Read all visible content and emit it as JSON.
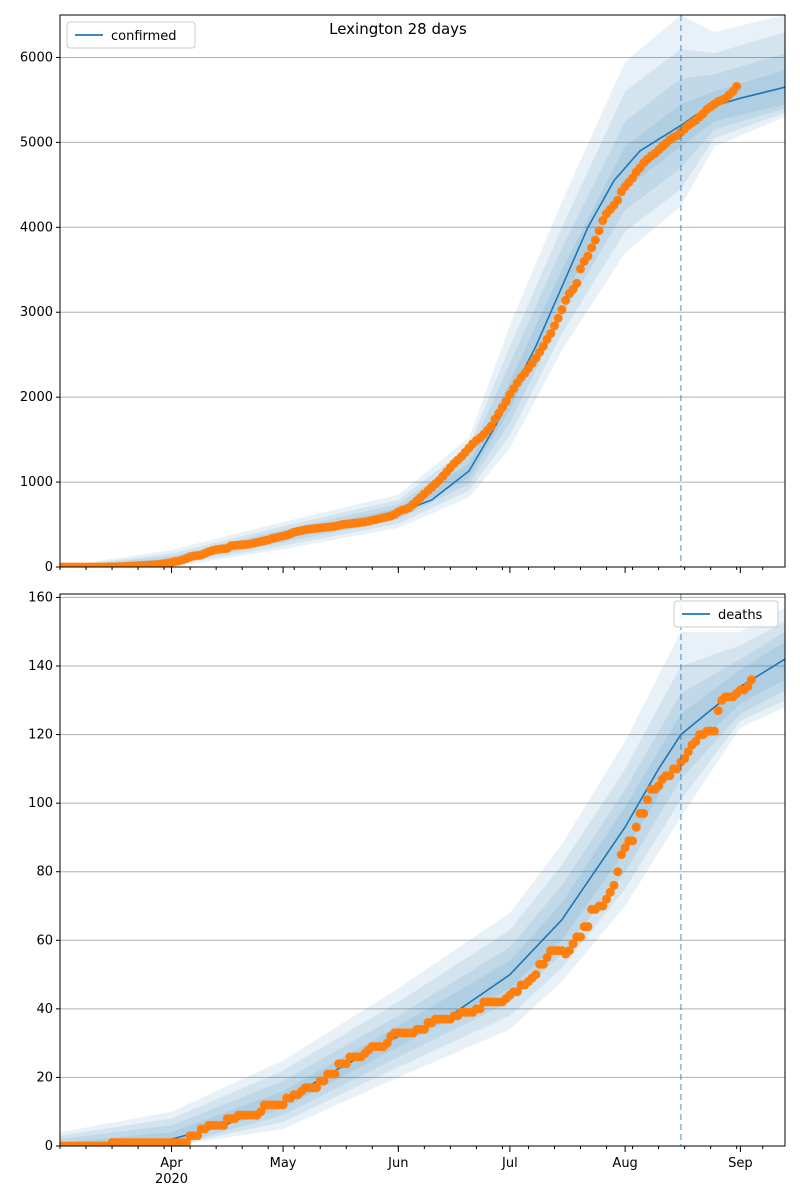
{
  "figure": {
    "title": "Lexington 28 days"
  },
  "colors": {
    "model": "#1f77b4",
    "observed": "#ff7f0e",
    "band": "#1f77b4",
    "grid": "#b0b0b0",
    "vline": "#1f77b4"
  },
  "x_axis": {
    "start": "2020-03-02",
    "end": "2020-09-13",
    "ticks": [
      {
        "date": "2020-04-01",
        "label": "Apr",
        "sublabel": "2020"
      },
      {
        "date": "2020-05-01",
        "label": "May"
      },
      {
        "date": "2020-06-01",
        "label": "Jun"
      },
      {
        "date": "2020-07-01",
        "label": "Jul"
      },
      {
        "date": "2020-08-01",
        "label": "Aug"
      },
      {
        "date": "2020-09-01",
        "label": "Sep"
      }
    ],
    "forecast_start": "2020-08-16"
  },
  "chart_data": [
    {
      "type": "line",
      "legend": "confirmed",
      "legend_position": "upper left",
      "grid": "horizontal",
      "ylim": [
        0,
        6500
      ],
      "yticks": [
        0,
        1000,
        2000,
        3000,
        4000,
        5000,
        6000
      ],
      "model": {
        "name": "confirmed",
        "points": [
          [
            "2020-03-02",
            0
          ],
          [
            "2020-03-15",
            3
          ],
          [
            "2020-03-25",
            25
          ],
          [
            "2020-04-01",
            80
          ],
          [
            "2020-04-10",
            160
          ],
          [
            "2020-04-20",
            250
          ],
          [
            "2020-05-01",
            360
          ],
          [
            "2020-05-10",
            450
          ],
          [
            "2020-05-20",
            530
          ],
          [
            "2020-06-01",
            640
          ],
          [
            "2020-06-10",
            790
          ],
          [
            "2020-06-20",
            1130
          ],
          [
            "2020-06-27",
            1650
          ],
          [
            "2020-07-01",
            2000
          ],
          [
            "2020-07-08",
            2600
          ],
          [
            "2020-07-15",
            3300
          ],
          [
            "2020-07-22",
            4000
          ],
          [
            "2020-07-29",
            4550
          ],
          [
            "2020-08-05",
            4900
          ],
          [
            "2020-08-16",
            5200
          ],
          [
            "2020-08-20",
            5320
          ],
          [
            "2020-08-25",
            5430
          ],
          [
            "2020-09-01",
            5520
          ],
          [
            "2020-09-13",
            5650
          ]
        ]
      },
      "bands": [
        {
          "level": 1,
          "points": [
            [
              "2020-03-02",
              0,
              0
            ],
            [
              "2020-04-01",
              60,
              100
            ],
            [
              "2020-05-01",
              330,
              400
            ],
            [
              "2020-06-01",
              600,
              690
            ],
            [
              "2020-06-20",
              1050,
              1220
            ],
            [
              "2020-07-01",
              1850,
              2180
            ],
            [
              "2020-07-15",
              3150,
              3500
            ],
            [
              "2020-08-01",
              4450,
              4950
            ],
            [
              "2020-08-16",
              4950,
              5450
            ],
            [
              "2020-08-25",
              5250,
              5600
            ],
            [
              "2020-09-13",
              5450,
              5850
            ]
          ]
        },
        {
          "level": 2,
          "points": [
            [
              "2020-03-02",
              0,
              0
            ],
            [
              "2020-04-01",
              40,
              130
            ],
            [
              "2020-05-01",
              290,
              440
            ],
            [
              "2020-06-01",
              560,
              740
            ],
            [
              "2020-06-20",
              980,
              1320
            ],
            [
              "2020-07-01",
              1700,
              2400
            ],
            [
              "2020-07-15",
              2950,
              3750
            ],
            [
              "2020-08-01",
              4200,
              5250
            ],
            [
              "2020-08-16",
              4700,
              5750
            ],
            [
              "2020-08-25",
              5150,
              5800
            ],
            [
              "2020-09-13",
              5400,
              6050
            ]
          ]
        },
        {
          "level": 3,
          "points": [
            [
              "2020-03-02",
              0,
              0
            ],
            [
              "2020-04-01",
              20,
              160
            ],
            [
              "2020-05-01",
              250,
              480
            ],
            [
              "2020-06-01",
              510,
              790
            ],
            [
              "2020-06-20",
              900,
              1420
            ],
            [
              "2020-07-01",
              1550,
              2600
            ],
            [
              "2020-07-15",
              2750,
              4000
            ],
            [
              "2020-08-01",
              3950,
              5600
            ],
            [
              "2020-08-16",
              4450,
              6100
            ],
            [
              "2020-08-25",
              5050,
              6050
            ],
            [
              "2020-09-13",
              5350,
              6300
            ]
          ]
        },
        {
          "level": 4,
          "points": [
            [
              "2020-03-02",
              0,
              5
            ],
            [
              "2020-04-01",
              0,
              200
            ],
            [
              "2020-05-01",
              210,
              530
            ],
            [
              "2020-06-01",
              460,
              850
            ],
            [
              "2020-06-20",
              820,
              1520
            ],
            [
              "2020-07-01",
              1400,
              2850
            ],
            [
              "2020-07-15",
              2550,
              4300
            ],
            [
              "2020-08-01",
              3700,
              5950
            ],
            [
              "2020-08-16",
              4250,
              6500
            ],
            [
              "2020-08-25",
              4950,
              6300
            ],
            [
              "2020-09-13",
              5300,
              6500
            ]
          ]
        }
      ],
      "observed": {
        "start": "2020-03-02",
        "values": [
          0,
          0,
          0,
          0,
          0,
          0,
          0,
          0,
          0,
          0,
          0,
          0,
          0,
          1,
          1,
          2,
          3,
          5,
          8,
          10,
          12,
          15,
          18,
          20,
          22,
          25,
          28,
          32,
          38,
          45,
          55,
          65,
          72,
          85,
          100,
          120,
          130,
          135,
          140,
          160,
          180,
          195,
          205,
          210,
          215,
          220,
          250,
          255,
          258,
          262,
          265,
          270,
          280,
          290,
          300,
          310,
          320,
          335,
          345,
          355,
          365,
          375,
          390,
          410,
          420,
          430,
          440,
          445,
          450,
          455,
          460,
          465,
          470,
          475,
          480,
          490,
          500,
          505,
          510,
          515,
          520,
          525,
          530,
          540,
          550,
          560,
          570,
          580,
          590,
          600,
          620,
          650,
          670,
          680,
          700,
          740,
          780,
          820,
          860,
          900,
          940,
          980,
          1020,
          1070,
          1120,
          1170,
          1220,
          1260,
          1300,
          1350,
          1400,
          1450,
          1490,
          1520,
          1560,
          1610,
          1660,
          1740,
          1810,
          1880,
          1950,
          2030,
          2100,
          2170,
          2230,
          2280,
          2340,
          2400,
          2460,
          2530,
          2600,
          2680,
          2750,
          2840,
          2930,
          3030,
          3140,
          3220,
          3270,
          3340,
          3510,
          3600,
          3660,
          3760,
          3850,
          3960,
          4080,
          4160,
          4210,
          4260,
          4320,
          4420,
          4480,
          4530,
          4580,
          4650,
          4700,
          4760,
          4800,
          4840,
          4870,
          4910,
          4950,
          4990,
          5030,
          5060,
          5080,
          5120,
          5160,
          5200,
          5230,
          5260,
          5300,
          5340,
          5390,
          5420,
          5450,
          5480,
          5500,
          5520,
          5560,
          5600,
          5660
        ]
      }
    },
    {
      "type": "line",
      "legend": "deaths",
      "legend_position": "upper right",
      "grid": "horizontal",
      "ylim": [
        0,
        161
      ],
      "yticks": [
        0,
        20,
        40,
        60,
        80,
        100,
        120,
        140,
        160
      ],
      "model": {
        "name": "deaths",
        "points": [
          [
            "2020-03-02",
            0
          ],
          [
            "2020-03-20",
            0.5
          ],
          [
            "2020-04-01",
            2
          ],
          [
            "2020-04-15",
            6
          ],
          [
            "2020-05-01",
            13
          ],
          [
            "2020-05-15",
            22
          ],
          [
            "2020-06-01",
            32
          ],
          [
            "2020-06-15",
            38
          ],
          [
            "2020-07-01",
            50
          ],
          [
            "2020-07-15",
            66
          ],
          [
            "2020-08-01",
            93
          ],
          [
            "2020-08-10",
            110
          ],
          [
            "2020-08-16",
            120
          ],
          [
            "2020-08-25",
            128
          ],
          [
            "2020-09-01",
            134
          ],
          [
            "2020-09-13",
            142
          ]
        ]
      },
      "bands": [
        {
          "level": 1,
          "points": [
            [
              "2020-03-02",
              0,
              1
            ],
            [
              "2020-04-01",
              1,
              4
            ],
            [
              "2020-05-01",
              11,
              16
            ],
            [
              "2020-06-01",
              29,
              35
            ],
            [
              "2020-07-01",
              46,
              54
            ],
            [
              "2020-07-15",
              60,
              71
            ],
            [
              "2020-08-01",
              86,
              99
            ],
            [
              "2020-08-16",
              113,
              126
            ],
            [
              "2020-09-01",
              129,
              139
            ],
            [
              "2020-09-13",
              136,
              147
            ]
          ]
        },
        {
          "level": 2,
          "points": [
            [
              "2020-03-02",
              0,
              2
            ],
            [
              "2020-04-01",
              0,
              6
            ],
            [
              "2020-05-01",
              9,
              19
            ],
            [
              "2020-06-01",
              26,
              38
            ],
            [
              "2020-07-01",
              42,
              58
            ],
            [
              "2020-07-15",
              56,
              76
            ],
            [
              "2020-08-01",
              80,
              104
            ],
            [
              "2020-08-16",
              107,
              132
            ],
            [
              "2020-09-01",
              126,
              142
            ],
            [
              "2020-09-13",
              133,
              150
            ]
          ]
        },
        {
          "level": 3,
          "points": [
            [
              "2020-03-02",
              0,
              3
            ],
            [
              "2020-04-01",
              0,
              8
            ],
            [
              "2020-05-01",
              7,
              22
            ],
            [
              "2020-06-01",
              23,
              42
            ],
            [
              "2020-07-01",
              38,
              63
            ],
            [
              "2020-07-15",
              52,
              82
            ],
            [
              "2020-08-01",
              75,
              110
            ],
            [
              "2020-08-16",
              101,
              140
            ],
            [
              "2020-09-01",
              124,
              146
            ],
            [
              "2020-09-13",
              130,
              153
            ]
          ]
        },
        {
          "level": 4,
          "points": [
            [
              "2020-03-02",
              0,
              4
            ],
            [
              "2020-04-01",
              0,
              10
            ],
            [
              "2020-05-01",
              5,
              25
            ],
            [
              "2020-06-01",
              20,
              46
            ],
            [
              "2020-07-01",
              34,
              68
            ],
            [
              "2020-07-15",
              48,
              88
            ],
            [
              "2020-08-01",
              70,
              118
            ],
            [
              "2020-08-16",
              96,
              150
            ],
            [
              "2020-09-01",
              122,
              150
            ],
            [
              "2020-09-13",
              128,
              157
            ]
          ]
        }
      ],
      "observed": {
        "start": "2020-03-02",
        "values": [
          0,
          0,
          0,
          0,
          0,
          0,
          0,
          0,
          0,
          0,
          0,
          0,
          0,
          0,
          1,
          1,
          1,
          1,
          1,
          1,
          1,
          1,
          1,
          1,
          1,
          1,
          1,
          1,
          1,
          1,
          1,
          1,
          1,
          1,
          1,
          3,
          3,
          3,
          5,
          5,
          6,
          6,
          6,
          6,
          6,
          8,
          8,
          8,
          9,
          9,
          9,
          9,
          9,
          9,
          10,
          12,
          12,
          12,
          12,
          12,
          12,
          14,
          14,
          15,
          15,
          16,
          17,
          17,
          17,
          17,
          19,
          19,
          21,
          21,
          21,
          24,
          24,
          24,
          26,
          26,
          26,
          26,
          27,
          28,
          29,
          29,
          29,
          29,
          30,
          32,
          33,
          33,
          33,
          33,
          33,
          33,
          34,
          34,
          34,
          36,
          36,
          37,
          37,
          37,
          37,
          37,
          38,
          38,
          39,
          39,
          39,
          39,
          40,
          40,
          42,
          42,
          42,
          42,
          42,
          42,
          43,
          44,
          45,
          45,
          47,
          47,
          48,
          49,
          50,
          53,
          53,
          55,
          57,
          57,
          57,
          57,
          56,
          57,
          59,
          61,
          61,
          64,
          64,
          69,
          69,
          70,
          70,
          72,
          74,
          76,
          80,
          85,
          87,
          89,
          89,
          93,
          97,
          97,
          101,
          104,
          104,
          105,
          107,
          108,
          108,
          110,
          110,
          112,
          113,
          115,
          117,
          118,
          120,
          120,
          121,
          121,
          121,
          127,
          130,
          131,
          131,
          131,
          132,
          133,
          133,
          134,
          136
        ]
      }
    }
  ]
}
